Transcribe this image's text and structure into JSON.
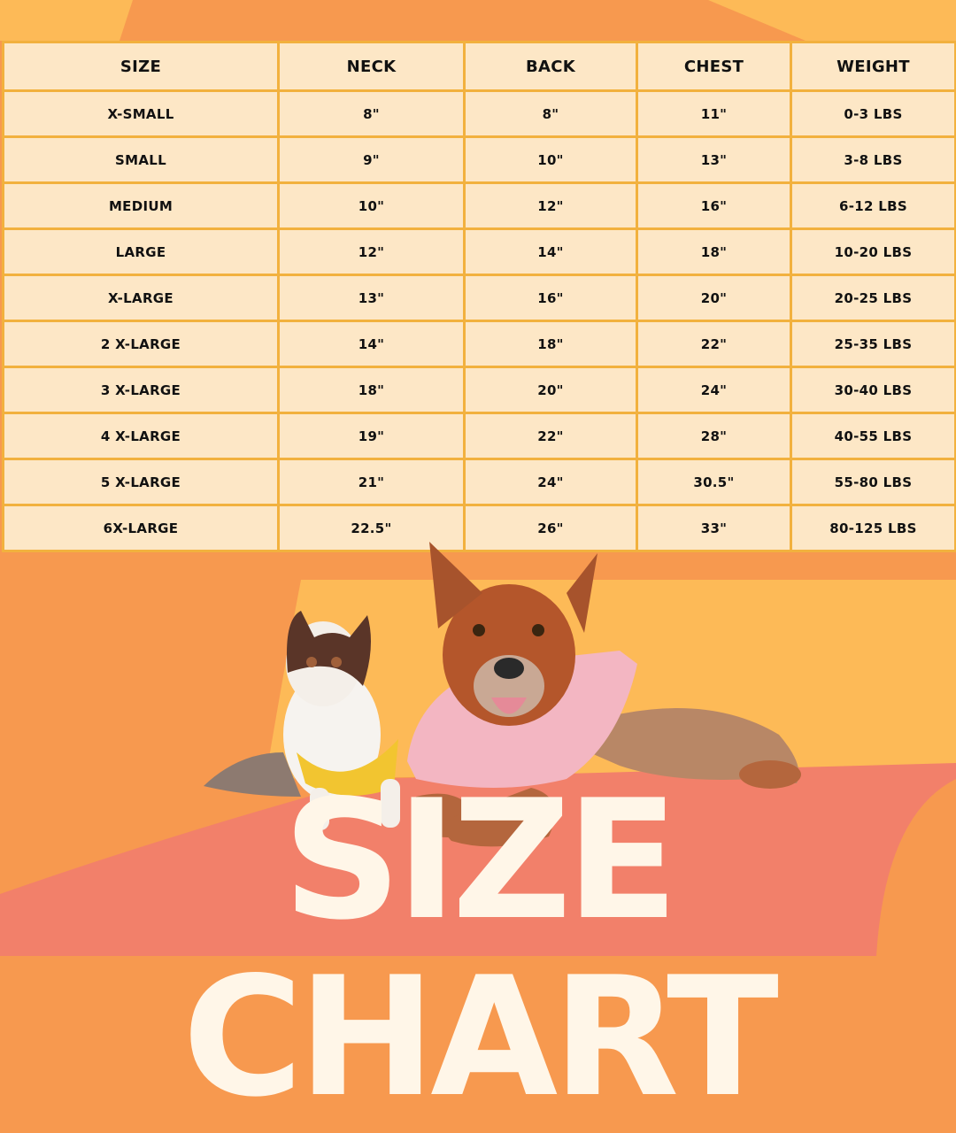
{
  "title": "SIZE CHART",
  "colors": {
    "table_bg": "#FDE7C6",
    "table_border": "#F2B13E",
    "orange": "#F7994F",
    "yellow": "#FDBA57",
    "salmon": "#F2806A",
    "title_text": "#FFF6E8"
  },
  "table": {
    "headers": [
      "SIZE",
      "NECK",
      "BACK",
      "CHEST",
      "WEIGHT"
    ],
    "rows": [
      [
        "X-SMALL",
        "8\"",
        "8\"",
        "11\"",
        "0-3 LBS"
      ],
      [
        "SMALL",
        "9\"",
        "10\"",
        "13\"",
        "3-8 LBS"
      ],
      [
        "MEDIUM",
        "10\"",
        "12\"",
        "16\"",
        "6-12 LBS"
      ],
      [
        "LARGE",
        "12\"",
        "14\"",
        "18\"",
        "10-20 LBS"
      ],
      [
        "X-LARGE",
        "13\"",
        "16\"",
        "20\"",
        "20-25 LBS"
      ],
      [
        "2 X-LARGE",
        "14\"",
        "18\"",
        "22\"",
        "25-35 LBS"
      ],
      [
        "3 X-LARGE",
        "18\"",
        "20\"",
        "24\"",
        "30-40 LBS"
      ],
      [
        "4 X-LARGE",
        "19\"",
        "22\"",
        "28\"",
        "40-55 LBS"
      ],
      [
        "5 X-LARGE",
        "21\"",
        "24\"",
        "30.5\"",
        "55-80 LBS"
      ],
      [
        "6X-LARGE",
        "22.5\"",
        "26\"",
        "33\"",
        "80-125 LBS"
      ]
    ]
  },
  "images": {
    "small_dog": "chihuahua-in-yellow-shirt",
    "large_dog": "cattle-dog-in-pink-shirt"
  }
}
